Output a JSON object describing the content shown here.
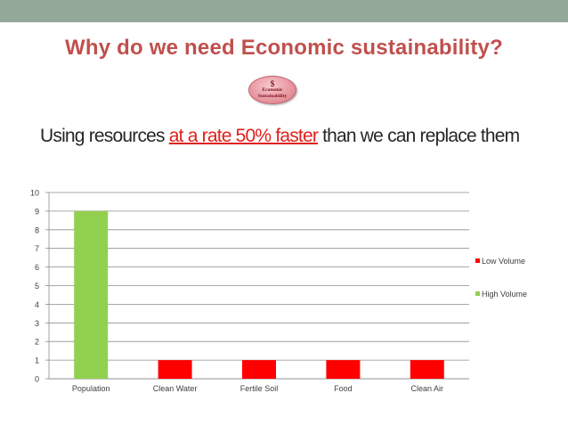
{
  "slide": {
    "title": "Why do we need Economic sustainability?",
    "badge": {
      "symbol": "$",
      "line1": "Economic",
      "line2": "Sustainability"
    },
    "subtitle_pre": "Using resources ",
    "subtitle_highlight": "at a rate 50% faster",
    "subtitle_post": " than we can replace them"
  },
  "colors": {
    "title": "#c0504d",
    "highlight": "#e0201b",
    "top_bar": "#94a89a",
    "low_volume": "#ff0000",
    "high_volume": "#92d050",
    "gridline": "#8c8c8c"
  },
  "chart_data": {
    "type": "bar",
    "stacked": true,
    "categories": [
      "Population",
      "Clean Water",
      "Fertile Soil",
      "Food",
      "Clean Air"
    ],
    "series": [
      {
        "name": "Low Volume",
        "values": [
          0,
          1,
          1,
          1,
          1
        ]
      },
      {
        "name": "High Volume",
        "values": [
          9,
          0,
          0,
          0,
          0
        ]
      }
    ],
    "ylim": [
      0,
      10
    ],
    "yticks": [
      0,
      1,
      2,
      3,
      4,
      5,
      6,
      7,
      8,
      9,
      10
    ],
    "grid": true,
    "legend_position": "right",
    "title": "",
    "xlabel": "",
    "ylabel": ""
  }
}
